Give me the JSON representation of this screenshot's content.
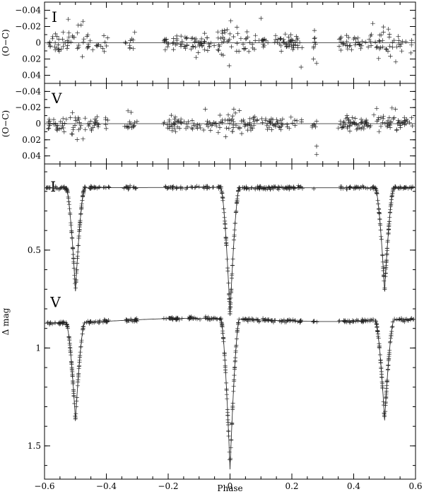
{
  "chart_data": {
    "type": "scatter",
    "xlabel": "Phase",
    "xlim": [
      -0.6,
      0.6
    ],
    "xticks": [
      "-0.6",
      "-0.4",
      "-0.2",
      "0",
      "0.2",
      "0.4",
      "0.6"
    ],
    "panels": [
      {
        "id": "resid_I",
        "letter": "I",
        "ylabel": "(O−C)",
        "ylim": [
          -0.05,
          0.05
        ],
        "inverted": true,
        "yticks": [
          {
            "value": -0.04,
            "label": "−0.04"
          },
          {
            "value": -0.02,
            "label": "−0.02"
          },
          {
            "value": 0,
            "label": "0"
          },
          {
            "value": 0.02,
            "label": "0.02"
          },
          {
            "value": 0.04,
            "label": "0.04"
          }
        ],
        "zero_line": true,
        "scatter_amplitude": 0.008,
        "outliers": [
          [
            0.27,
            0.02
          ],
          [
            0.28,
            0.025
          ],
          [
            0.23,
            0.03
          ],
          [
            -0.11,
            0.018
          ],
          [
            0.1,
            -0.03
          ]
        ]
      },
      {
        "id": "resid_V",
        "letter": "V",
        "ylabel": "(O−C)",
        "ylim": [
          -0.05,
          0.05
        ],
        "inverted": true,
        "yticks": [
          {
            "value": -0.04,
            "label": "−0.04"
          },
          {
            "value": -0.02,
            "label": "−0.02"
          },
          {
            "value": 0,
            "label": "0"
          },
          {
            "value": 0.02,
            "label": "0.02"
          },
          {
            "value": 0.04,
            "label": "0.04"
          }
        ],
        "zero_line": true,
        "scatter_amplitude": 0.006,
        "outliers": [
          [
            0.28,
            0.028
          ],
          [
            0.28,
            0.038
          ],
          [
            -0.33,
            -0.016
          ],
          [
            -0.32,
            -0.014
          ],
          [
            -0.08,
            -0.018
          ]
        ]
      },
      {
        "id": "lightcurve",
        "ylabel": "Δ mag",
        "ylim": [
          0.06,
          1.67
        ],
        "inverted": true,
        "yticks": [
          {
            "value": 0.5,
            "label": "0.5"
          },
          {
            "value": 1,
            "label": "1"
          },
          {
            "value": 1.5,
            "label": "1.5"
          }
        ],
        "series": [
          {
            "name": "I",
            "letter": "I",
            "letter_anchor": [
              -0.595,
              0.15
            ],
            "baseline": 0.18,
            "curvature": 0.01,
            "primary_min": 0.83,
            "secondary_min": 0.71,
            "eclipse_halfwidth": 0.03
          },
          {
            "name": "V",
            "letter": "V",
            "letter_anchor": [
              -0.595,
              0.74
            ],
            "baseline": 0.85,
            "curvature": 0.09,
            "primary_min": 1.62,
            "secondary_min": 1.37,
            "eclipse_halfwidth": 0.03
          }
        ]
      }
    ]
  }
}
